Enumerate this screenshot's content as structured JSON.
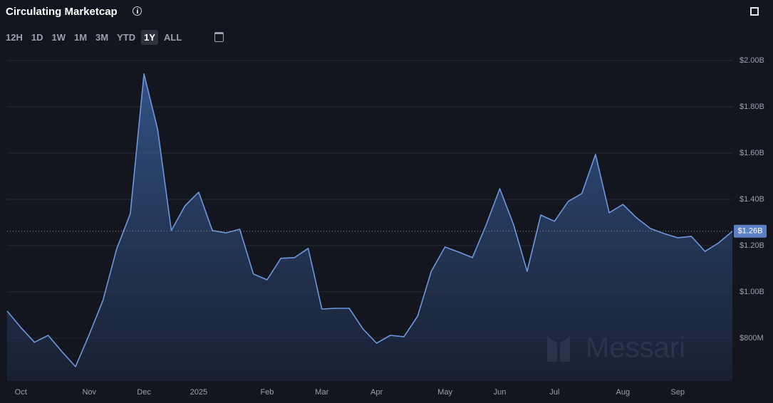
{
  "title": "Circulating Marketcap",
  "ranges": [
    "12H",
    "1D",
    "1W",
    "1M",
    "3M",
    "YTD",
    "1Y",
    "ALL"
  ],
  "active_range": "1Y",
  "watermark": "Messari",
  "chart_data": {
    "type": "area",
    "categories": [
      null,
      "Oct",
      null,
      null,
      null,
      null,
      "Nov",
      null,
      null,
      null,
      "Dec",
      null,
      null,
      null,
      "2025",
      null,
      null,
      null,
      null,
      "Feb",
      null,
      null,
      null,
      "Mar",
      null,
      null,
      null,
      "Apr",
      null,
      null,
      null,
      null,
      "May",
      null,
      null,
      null,
      "Jun",
      null,
      null,
      null,
      "Jul",
      null,
      null,
      null,
      null,
      "Aug",
      null,
      null,
      null,
      "Sep",
      null,
      null,
      null,
      null
    ],
    "series": [
      {
        "name": "Circulating Marketcap",
        "color": "#6f97dc",
        "values": [
          917000000,
          846000000,
          782000000,
          812000000,
          742000000,
          677000000,
          815000000,
          963000000,
          1185000000,
          1338000000,
          1942000000,
          1702000000,
          1265000000,
          1372000000,
          1431000000,
          1265000000,
          1255000000,
          1271000000,
          1077000000,
          1052000000,
          1145000000,
          1148000000,
          1188000000,
          926000000,
          929000000,
          929000000,
          840000000,
          778000000,
          812000000,
          806000000,
          895000000,
          1089000000,
          1194000000,
          1172000000,
          1148000000,
          1289000000,
          1446000000,
          1292000000,
          1089000000,
          1332000000,
          1305000000,
          1391000000,
          1425000000,
          1594000000,
          1342000000,
          1378000000,
          1320000000,
          1274000000,
          1252000000,
          1234000000,
          1240000000,
          1175000000,
          1212000000,
          1262000000
        ]
      }
    ],
    "ylim": [
      615000000,
      2000000000
    ],
    "yticks": [
      {
        "value": 800000000,
        "label": "$800M"
      },
      {
        "value": 1000000000,
        "label": "$1.00B"
      },
      {
        "value": 1200000000,
        "label": "$1.20B"
      },
      {
        "value": 1400000000,
        "label": "$1.40B"
      },
      {
        "value": 1600000000,
        "label": "$1.60B"
      },
      {
        "value": 1800000000,
        "label": "$1.80B"
      },
      {
        "value": 2000000000,
        "label": "$2.00B"
      }
    ],
    "grid": true,
    "annotations": [
      {
        "value": 1262000000,
        "label": "$1.26B"
      }
    ]
  }
}
